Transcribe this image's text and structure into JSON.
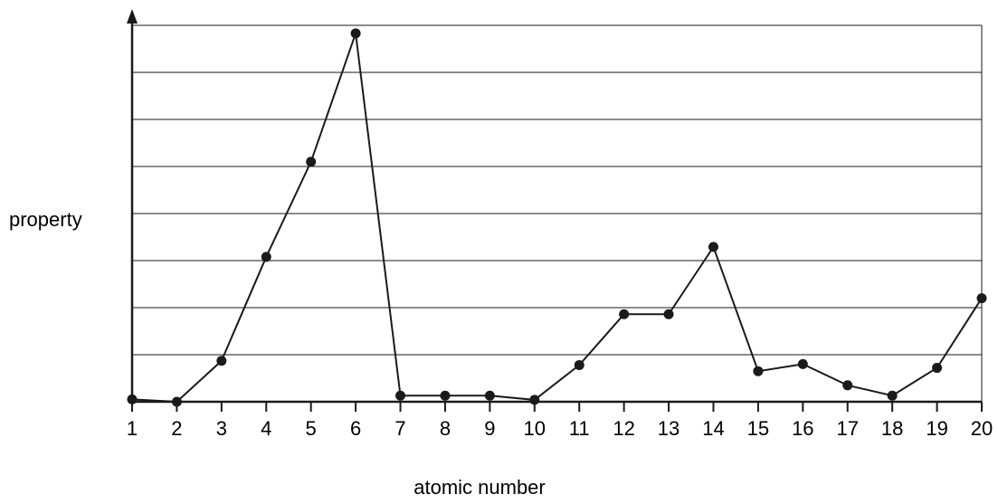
{
  "chart_data": {
    "type": "line",
    "xlabel": "atomic number",
    "ylabel": "property",
    "x": [
      1,
      2,
      3,
      4,
      5,
      6,
      7,
      8,
      9,
      10,
      11,
      12,
      13,
      14,
      15,
      16,
      17,
      18,
      19,
      20
    ],
    "series": [
      {
        "values": [
          0.05,
          0.0,
          0.87,
          3.08,
          5.1,
          7.83,
          0.13,
          0.13,
          0.13,
          0.04,
          0.78,
          1.86,
          1.86,
          3.29,
          0.65,
          0.8,
          0.35,
          0.13,
          0.72,
          2.2
        ]
      }
    ],
    "xlim": [
      1,
      20
    ],
    "ylim": [
      0,
      8
    ],
    "grid": "horizontal",
    "colors": {
      "line": "#1a1a1a",
      "grid": "#1a1a1a",
      "axis": "#1a1a1a"
    }
  }
}
